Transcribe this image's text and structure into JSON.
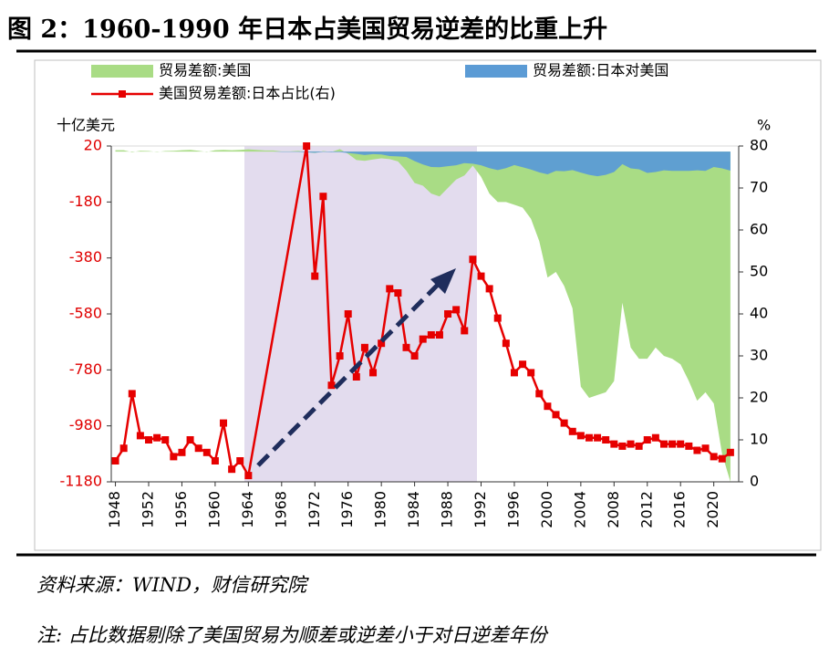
{
  "chart_data": {
    "type": "area-line",
    "title": "图 2：1960-1990 年日本占美国贸易逆差的比重上升",
    "source": "资料来源：WIND，财信研究院",
    "note": "注: 占比数据剔除了美国贸易为顺差或逆差小于对日逆差年份",
    "y_label": "十亿美元",
    "y2_label": "%",
    "xlim": [
      1947.5,
      2023
    ],
    "xticks": [
      1948,
      1952,
      1956,
      1960,
      1964,
      1968,
      1972,
      1976,
      1980,
      1984,
      1988,
      1992,
      1996,
      2000,
      2004,
      2008,
      2012,
      2016,
      2020
    ],
    "ylim": [
      -1180,
      20
    ],
    "yticks": [
      20,
      -180,
      -380,
      -580,
      -780,
      -980,
      -1180
    ],
    "y2lim": [
      0,
      80
    ],
    "y2ticks": [
      0,
      10,
      20,
      30,
      40,
      50,
      60,
      70,
      80
    ],
    "series": [
      {
        "name": "贸易差额:美国",
        "type": "area",
        "color": "#a9dc85",
        "x": [
          1948,
          1949,
          1950,
          1951,
          1952,
          1953,
          1954,
          1955,
          1956,
          1957,
          1958,
          1959,
          1960,
          1961,
          1962,
          1963,
          1964,
          1965,
          1966,
          1967,
          1968,
          1969,
          1970,
          1971,
          1972,
          1973,
          1974,
          1975,
          1976,
          1977,
          1978,
          1979,
          1980,
          1981,
          1982,
          1983,
          1984,
          1985,
          1986,
          1987,
          1988,
          1989,
          1990,
          1991,
          1992,
          1993,
          1994,
          1995,
          1996,
          1997,
          1998,
          1999,
          2000,
          2001,
          2002,
          2003,
          2004,
          2005,
          2006,
          2007,
          2008,
          2009,
          2010,
          2011,
          2012,
          2013,
          2014,
          2015,
          2016,
          2017,
          2018,
          2019,
          2020,
          2021,
          2022
        ],
        "values": [
          5,
          5,
          -2,
          3,
          2,
          -1,
          2,
          3,
          5,
          6,
          3,
          -1,
          5,
          6,
          5,
          6,
          8,
          6,
          4,
          4,
          1,
          1,
          3,
          -1,
          -5,
          2,
          -1,
          9,
          -8,
          -30,
          -33,
          -28,
          -24,
          -27,
          -35,
          -68,
          -112,
          -122,
          -150,
          -160,
          -130,
          -100,
          -85,
          -50,
          -90,
          -150,
          -180,
          -180,
          -190,
          -200,
          -240,
          -320,
          -450,
          -430,
          -480,
          -560,
          -840,
          -880,
          -870,
          -860,
          -820,
          -540,
          -700,
          -740,
          -740,
          -700,
          -730,
          -740,
          -760,
          -820,
          -890,
          -860,
          -900,
          -1080,
          -1180
        ]
      },
      {
        "name": "贸易差额:日本对美国",
        "type": "area",
        "color": "#5b9bd5",
        "x": [
          1948,
          1949,
          1950,
          1951,
          1952,
          1953,
          1954,
          1955,
          1956,
          1957,
          1958,
          1959,
          1960,
          1961,
          1962,
          1963,
          1964,
          1965,
          1966,
          1967,
          1968,
          1969,
          1970,
          1971,
          1972,
          1973,
          1974,
          1975,
          1976,
          1977,
          1978,
          1979,
          1980,
          1981,
          1982,
          1983,
          1984,
          1985,
          1986,
          1987,
          1988,
          1989,
          1990,
          1991,
          1992,
          1993,
          1994,
          1995,
          1996,
          1997,
          1998,
          1999,
          2000,
          2001,
          2002,
          2003,
          2004,
          2005,
          2006,
          2007,
          2008,
          2009,
          2010,
          2011,
          2012,
          2013,
          2014,
          2015,
          2016,
          2017,
          2018,
          2019,
          2020,
          2021,
          2022
        ],
        "values": [
          0,
          0,
          0,
          0,
          0,
          0,
          0,
          0,
          0,
          0,
          0,
          0,
          0,
          0,
          0,
          0,
          0,
          0,
          0,
          0,
          -1,
          -1,
          -1,
          -3,
          -4,
          -1,
          -2,
          -2,
          -5,
          -8,
          -12,
          -9,
          -10,
          -16,
          -17,
          -19,
          -34,
          -46,
          -55,
          -56,
          -52,
          -49,
          -41,
          -43,
          -49,
          -59,
          -66,
          -59,
          -48,
          -56,
          -64,
          -74,
          -81,
          -69,
          -70,
          -66,
          -75,
          -83,
          -88,
          -83,
          -73,
          -45,
          -60,
          -63,
          -76,
          -73,
          -67,
          -69,
          -69,
          -69,
          -67,
          -69,
          -55,
          -60,
          -68
        ]
      },
      {
        "name": "美国贸易差额:日本占比(右)",
        "type": "line",
        "axis": "y2",
        "color": "#e60000",
        "x": [
          1948,
          1949,
          1950,
          1951,
          1952,
          1953,
          1954,
          1955,
          1956,
          1957,
          1958,
          1959,
          1960,
          1961,
          1962,
          1963,
          1964,
          1971,
          1972,
          1973,
          1974,
          1975,
          1976,
          1977,
          1978,
          1979,
          1980,
          1981,
          1982,
          1983,
          1984,
          1985,
          1986,
          1987,
          1988,
          1989,
          1990,
          1991,
          1992,
          1993,
          1994,
          1995,
          1996,
          1997,
          1998,
          1999,
          2000,
          2001,
          2002,
          2003,
          2004,
          2005,
          2006,
          2007,
          2008,
          2009,
          2010,
          2011,
          2012,
          2013,
          2014,
          2015,
          2016,
          2017,
          2018,
          2019,
          2020,
          2021,
          2022
        ],
        "values": [
          5,
          8,
          21,
          11,
          10,
          10.5,
          10,
          6,
          7,
          10,
          8,
          7,
          5,
          14,
          3,
          5,
          1.5,
          80,
          49,
          68,
          23,
          30,
          40,
          25,
          32,
          26,
          33,
          46,
          45,
          32,
          30,
          34,
          35,
          35,
          40,
          41,
          36,
          53,
          49,
          46,
          39,
          33,
          26,
          28,
          26,
          21,
          18,
          16,
          14,
          12,
          11,
          10.5,
          10.5,
          10,
          9,
          8.5,
          9,
          8.5,
          10,
          10.5,
          9,
          9,
          9,
          8.5,
          7.5,
          8,
          6,
          5.5,
          7
        ]
      }
    ]
  }
}
